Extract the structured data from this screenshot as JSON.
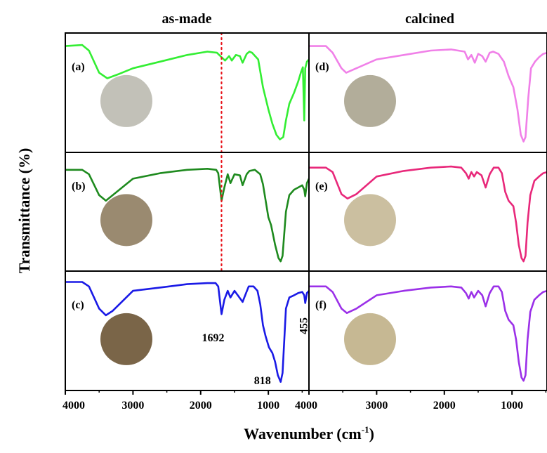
{
  "chart_data": {
    "type": "line",
    "column_titles": [
      "as-made",
      "calcined"
    ],
    "xlabel": "Wavenumber (cm",
    "xlabel_sup": "-1",
    "xlabel_close": ")",
    "ylabel": "Transmittance (%)",
    "x_ticks": [
      "4000",
      "3000",
      "2000",
      "1000"
    ],
    "x_tick_values": [
      4000,
      3000,
      2000,
      1000
    ],
    "xlim": [
      4000,
      400
    ],
    "grid": false,
    "reference_line": {
      "x": 1692,
      "style": "dotted",
      "color": "#e8141b"
    },
    "annotations": [
      {
        "text": "1692",
        "x": 1692,
        "panel": "c"
      },
      {
        "text": "818",
        "x": 818,
        "panel": "c"
      },
      {
        "text": "455",
        "x": 455,
        "panel": "c",
        "rotated": true
      }
    ],
    "panels": [
      {
        "id": "a",
        "label": "(a)",
        "column": 0,
        "row": 0,
        "color": "#33ee33",
        "swatch": "#c2c1b8",
        "series": [
          [
            4000,
            0.92
          ],
          [
            3750,
            0.93
          ],
          [
            3650,
            0.88
          ],
          [
            3500,
            0.68
          ],
          [
            3380,
            0.63
          ],
          [
            3200,
            0.67
          ],
          [
            3000,
            0.72
          ],
          [
            2600,
            0.78
          ],
          [
            2200,
            0.84
          ],
          [
            1900,
            0.87
          ],
          [
            1760,
            0.86
          ],
          [
            1692,
            0.82
          ],
          [
            1640,
            0.79
          ],
          [
            1580,
            0.83
          ],
          [
            1540,
            0.79
          ],
          [
            1480,
            0.84
          ],
          [
            1420,
            0.83
          ],
          [
            1380,
            0.77
          ],
          [
            1320,
            0.85
          ],
          [
            1280,
            0.87
          ],
          [
            1240,
            0.86
          ],
          [
            1150,
            0.8
          ],
          [
            1080,
            0.55
          ],
          [
            1000,
            0.35
          ],
          [
            940,
            0.22
          ],
          [
            880,
            0.12
          ],
          [
            830,
            0.08
          ],
          [
            780,
            0.1
          ],
          [
            740,
            0.25
          ],
          [
            690,
            0.4
          ],
          [
            620,
            0.5
          ],
          [
            560,
            0.6
          ],
          [
            520,
            0.68
          ],
          [
            490,
            0.73
          ],
          [
            470,
            0.25
          ],
          [
            455,
            0.72
          ],
          [
            430,
            0.78
          ],
          [
            400,
            0.8
          ]
        ]
      },
      {
        "id": "b",
        "label": "(b)",
        "column": 0,
        "row": 1,
        "color": "#1e8a1e",
        "swatch": "#9a8a70",
        "series": [
          [
            4000,
            0.88
          ],
          [
            3750,
            0.88
          ],
          [
            3650,
            0.84
          ],
          [
            3500,
            0.65
          ],
          [
            3400,
            0.6
          ],
          [
            3300,
            0.65
          ],
          [
            3000,
            0.8
          ],
          [
            2600,
            0.85
          ],
          [
            2200,
            0.88
          ],
          [
            1900,
            0.89
          ],
          [
            1770,
            0.88
          ],
          [
            1740,
            0.85
          ],
          [
            1692,
            0.6
          ],
          [
            1650,
            0.72
          ],
          [
            1600,
            0.84
          ],
          [
            1560,
            0.76
          ],
          [
            1500,
            0.84
          ],
          [
            1420,
            0.83
          ],
          [
            1380,
            0.74
          ],
          [
            1320,
            0.84
          ],
          [
            1280,
            0.87
          ],
          [
            1200,
            0.88
          ],
          [
            1120,
            0.84
          ],
          [
            1080,
            0.75
          ],
          [
            1000,
            0.45
          ],
          [
            960,
            0.38
          ],
          [
            900,
            0.2
          ],
          [
            850,
            0.08
          ],
          [
            818,
            0.05
          ],
          [
            790,
            0.1
          ],
          [
            740,
            0.5
          ],
          [
            690,
            0.65
          ],
          [
            620,
            0.7
          ],
          [
            560,
            0.72
          ],
          [
            500,
            0.74
          ],
          [
            470,
            0.7
          ],
          [
            455,
            0.64
          ],
          [
            430,
            0.76
          ],
          [
            400,
            0.8
          ]
        ]
      },
      {
        "id": "c",
        "label": "(c)",
        "column": 0,
        "row": 2,
        "color": "#1a1ae6",
        "swatch": "#7a6548",
        "series": [
          [
            4000,
            0.94
          ],
          [
            3750,
            0.94
          ],
          [
            3650,
            0.9
          ],
          [
            3500,
            0.7
          ],
          [
            3400,
            0.64
          ],
          [
            3300,
            0.68
          ],
          [
            3000,
            0.86
          ],
          [
            2600,
            0.89
          ],
          [
            2200,
            0.92
          ],
          [
            1900,
            0.93
          ],
          [
            1780,
            0.93
          ],
          [
            1740,
            0.9
          ],
          [
            1692,
            0.65
          ],
          [
            1650,
            0.78
          ],
          [
            1600,
            0.86
          ],
          [
            1560,
            0.8
          ],
          [
            1500,
            0.86
          ],
          [
            1440,
            0.81
          ],
          [
            1380,
            0.76
          ],
          [
            1330,
            0.84
          ],
          [
            1290,
            0.9
          ],
          [
            1220,
            0.9
          ],
          [
            1160,
            0.86
          ],
          [
            1120,
            0.74
          ],
          [
            1080,
            0.55
          ],
          [
            1040,
            0.45
          ],
          [
            990,
            0.35
          ],
          [
            940,
            0.3
          ],
          [
            900,
            0.22
          ],
          [
            860,
            0.1
          ],
          [
            818,
            0.04
          ],
          [
            790,
            0.12
          ],
          [
            740,
            0.7
          ],
          [
            690,
            0.8
          ],
          [
            620,
            0.82
          ],
          [
            560,
            0.84
          ],
          [
            500,
            0.85
          ],
          [
            470,
            0.82
          ],
          [
            455,
            0.75
          ],
          [
            430,
            0.84
          ],
          [
            400,
            0.86
          ]
        ]
      },
      {
        "id": "d",
        "label": "(d)",
        "column": 1,
        "row": 0,
        "color": "#f080e8",
        "swatch": "#b2ad9a",
        "series": [
          [
            4000,
            0.92
          ],
          [
            3750,
            0.92
          ],
          [
            3650,
            0.86
          ],
          [
            3520,
            0.72
          ],
          [
            3450,
            0.68
          ],
          [
            3300,
            0.72
          ],
          [
            3000,
            0.8
          ],
          [
            2600,
            0.84
          ],
          [
            2200,
            0.88
          ],
          [
            1900,
            0.89
          ],
          [
            1700,
            0.87
          ],
          [
            1650,
            0.8
          ],
          [
            1600,
            0.84
          ],
          [
            1550,
            0.77
          ],
          [
            1500,
            0.85
          ],
          [
            1440,
            0.83
          ],
          [
            1390,
            0.78
          ],
          [
            1330,
            0.86
          ],
          [
            1280,
            0.87
          ],
          [
            1200,
            0.85
          ],
          [
            1120,
            0.78
          ],
          [
            1050,
            0.65
          ],
          [
            980,
            0.55
          ],
          [
            920,
            0.35
          ],
          [
            870,
            0.12
          ],
          [
            830,
            0.06
          ],
          [
            800,
            0.1
          ],
          [
            760,
            0.45
          ],
          [
            720,
            0.72
          ],
          [
            660,
            0.78
          ],
          [
            600,
            0.82
          ],
          [
            540,
            0.85
          ],
          [
            480,
            0.86
          ],
          [
            440,
            0.87
          ],
          [
            400,
            0.88
          ]
        ]
      },
      {
        "id": "e",
        "label": "(e)",
        "column": 1,
        "row": 1,
        "color": "#e8287a",
        "swatch": "#cbbfa0",
        "series": [
          [
            4000,
            0.9
          ],
          [
            3750,
            0.9
          ],
          [
            3650,
            0.86
          ],
          [
            3520,
            0.66
          ],
          [
            3430,
            0.62
          ],
          [
            3300,
            0.66
          ],
          [
            3000,
            0.82
          ],
          [
            2600,
            0.87
          ],
          [
            2200,
            0.9
          ],
          [
            1900,
            0.91
          ],
          [
            1750,
            0.9
          ],
          [
            1680,
            0.85
          ],
          [
            1640,
            0.8
          ],
          [
            1600,
            0.86
          ],
          [
            1560,
            0.82
          ],
          [
            1520,
            0.86
          ],
          [
            1450,
            0.83
          ],
          [
            1390,
            0.72
          ],
          [
            1330,
            0.84
          ],
          [
            1270,
            0.9
          ],
          [
            1200,
            0.9
          ],
          [
            1150,
            0.85
          ],
          [
            1100,
            0.68
          ],
          [
            1050,
            0.6
          ],
          [
            980,
            0.55
          ],
          [
            940,
            0.4
          ],
          [
            900,
            0.2
          ],
          [
            860,
            0.08
          ],
          [
            830,
            0.05
          ],
          [
            800,
            0.1
          ],
          [
            770,
            0.4
          ],
          [
            730,
            0.65
          ],
          [
            670,
            0.78
          ],
          [
            600,
            0.82
          ],
          [
            540,
            0.85
          ],
          [
            480,
            0.86
          ],
          [
            440,
            0.87
          ],
          [
            400,
            0.88
          ]
        ]
      },
      {
        "id": "f",
        "label": "(f)",
        "column": 1,
        "row": 2,
        "color": "#9b30e8",
        "swatch": "#c6b893",
        "series": [
          [
            4000,
            0.9
          ],
          [
            3750,
            0.9
          ],
          [
            3650,
            0.85
          ],
          [
            3520,
            0.7
          ],
          [
            3440,
            0.66
          ],
          [
            3300,
            0.7
          ],
          [
            3000,
            0.82
          ],
          [
            2600,
            0.86
          ],
          [
            2200,
            0.89
          ],
          [
            1900,
            0.9
          ],
          [
            1750,
            0.89
          ],
          [
            1680,
            0.84
          ],
          [
            1640,
            0.79
          ],
          [
            1600,
            0.85
          ],
          [
            1560,
            0.8
          ],
          [
            1500,
            0.86
          ],
          [
            1440,
            0.82
          ],
          [
            1390,
            0.72
          ],
          [
            1330,
            0.84
          ],
          [
            1270,
            0.9
          ],
          [
            1200,
            0.9
          ],
          [
            1150,
            0.85
          ],
          [
            1100,
            0.68
          ],
          [
            1050,
            0.6
          ],
          [
            980,
            0.55
          ],
          [
            940,
            0.42
          ],
          [
            900,
            0.22
          ],
          [
            860,
            0.08
          ],
          [
            830,
            0.05
          ],
          [
            800,
            0.1
          ],
          [
            770,
            0.42
          ],
          [
            730,
            0.67
          ],
          [
            670,
            0.78
          ],
          [
            600,
            0.82
          ],
          [
            540,
            0.85
          ],
          [
            480,
            0.86
          ],
          [
            440,
            0.87
          ],
          [
            400,
            0.88
          ]
        ]
      }
    ]
  }
}
